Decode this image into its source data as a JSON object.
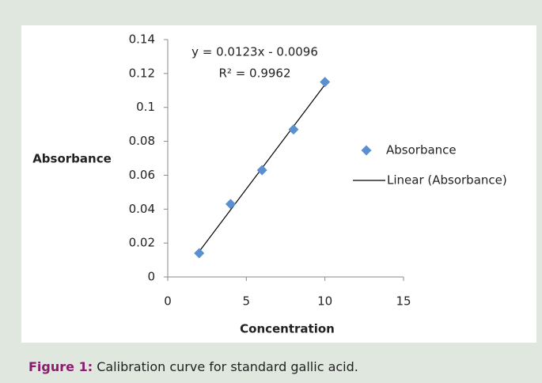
{
  "chart_data": {
    "type": "scatter",
    "xlabel": "Concentration",
    "ylabel": "Absorbance",
    "series": [
      {
        "name": "Absorbance",
        "color": "#5a8fd0",
        "x": [
          2,
          4,
          6,
          8,
          10
        ],
        "values": [
          0.014,
          0.043,
          0.063,
          0.087,
          0.115
        ]
      }
    ],
    "trendline": {
      "name": "Linear (Absorbance)",
      "color": "#000000",
      "slope": 0.0123,
      "intercept": -0.0096,
      "equation": "y = 0.0123x - 0.0096",
      "r2": "R² = 0.9962"
    },
    "xlim": [
      0,
      15
    ],
    "xticks": [
      0,
      5,
      10,
      15
    ],
    "ylim": [
      0,
      0.14
    ],
    "yticks": [
      0,
      0.02,
      0.04,
      0.06,
      0.08,
      0.1,
      0.12,
      0.14
    ],
    "grid": false,
    "legend": "right"
  },
  "caption": {
    "label": "Figure 1:",
    "text": "Calibration curve for standard gallic acid."
  }
}
